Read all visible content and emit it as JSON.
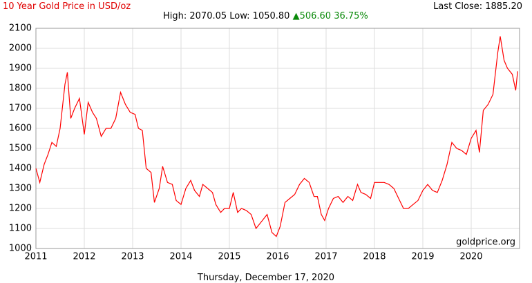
{
  "chart_data": {
    "type": "line",
    "title": "10 Year Gold Price in USD/oz",
    "subtitle": "High: 2070.05 Low: 1050.80",
    "change": "▲506.60 36.75%",
    "last_close": "Last Close: 1885.20",
    "watermark": "goldprice.org",
    "date_label": "Thursday, December 17, 2020",
    "grid": true,
    "xlim": [
      2011,
      2021
    ],
    "xticks": [
      2011,
      2012,
      2013,
      2014,
      2015,
      2016,
      2017,
      2018,
      2019,
      2020
    ],
    "ylim": [
      1000,
      2100
    ],
    "yticks": [
      1000,
      1100,
      1200,
      1300,
      1400,
      1500,
      1600,
      1700,
      1800,
      1900,
      2000,
      2100
    ],
    "x": [
      2011.0,
      2011.08,
      2011.17,
      2011.25,
      2011.33,
      2011.42,
      2011.5,
      2011.6,
      2011.65,
      2011.72,
      2011.8,
      2011.9,
      2012.0,
      2012.08,
      2012.17,
      2012.25,
      2012.35,
      2012.45,
      2012.55,
      2012.65,
      2012.75,
      2012.85,
      2012.95,
      2013.05,
      2013.12,
      2013.2,
      2013.28,
      2013.38,
      2013.45,
      2013.55,
      2013.62,
      2013.72,
      2013.82,
      2013.9,
      2014.0,
      2014.1,
      2014.2,
      2014.28,
      2014.38,
      2014.45,
      2014.55,
      2014.65,
      2014.72,
      2014.82,
      2014.9,
      2015.0,
      2015.08,
      2015.17,
      2015.25,
      2015.35,
      2015.45,
      2015.55,
      2015.65,
      2015.78,
      2015.88,
      2015.97,
      2016.05,
      2016.15,
      2016.25,
      2016.35,
      2016.45,
      2016.55,
      2016.65,
      2016.75,
      2016.82,
      2016.9,
      2016.97,
      2017.05,
      2017.15,
      2017.25,
      2017.35,
      2017.45,
      2017.55,
      2017.65,
      2017.72,
      2017.82,
      2017.92,
      2018.0,
      2018.1,
      2018.2,
      2018.3,
      2018.4,
      2018.5,
      2018.6,
      2018.7,
      2018.8,
      2018.9,
      2019.0,
      2019.1,
      2019.2,
      2019.3,
      2019.4,
      2019.5,
      2019.6,
      2019.7,
      2019.8,
      2019.9,
      2020.0,
      2020.1,
      2020.17,
      2020.25,
      2020.35,
      2020.45,
      2020.55,
      2020.6,
      2020.68,
      2020.75,
      2020.85,
      2020.92,
      2020.96
    ],
    "series": [
      {
        "name": "Gold",
        "color": "#ff0000",
        "values": [
          1400,
          1330,
          1420,
          1470,
          1530,
          1510,
          1600,
          1820,
          1880,
          1650,
          1700,
          1750,
          1570,
          1730,
          1680,
          1650,
          1560,
          1600,
          1600,
          1650,
          1780,
          1720,
          1680,
          1670,
          1600,
          1590,
          1400,
          1380,
          1230,
          1300,
          1410,
          1330,
          1320,
          1240,
          1220,
          1300,
          1340,
          1290,
          1260,
          1320,
          1300,
          1280,
          1220,
          1180,
          1200,
          1200,
          1280,
          1180,
          1200,
          1190,
          1170,
          1100,
          1130,
          1170,
          1080,
          1060,
          1110,
          1230,
          1250,
          1270,
          1320,
          1350,
          1330,
          1260,
          1260,
          1170,
          1140,
          1200,
          1250,
          1260,
          1230,
          1260,
          1240,
          1320,
          1280,
          1270,
          1250,
          1330,
          1330,
          1330,
          1320,
          1300,
          1250,
          1200,
          1200,
          1220,
          1240,
          1290,
          1320,
          1290,
          1280,
          1340,
          1420,
          1530,
          1500,
          1490,
          1470,
          1550,
          1590,
          1480,
          1690,
          1720,
          1770,
          1980,
          2060,
          1940,
          1900,
          1870,
          1790,
          1885.2
        ]
      }
    ]
  }
}
